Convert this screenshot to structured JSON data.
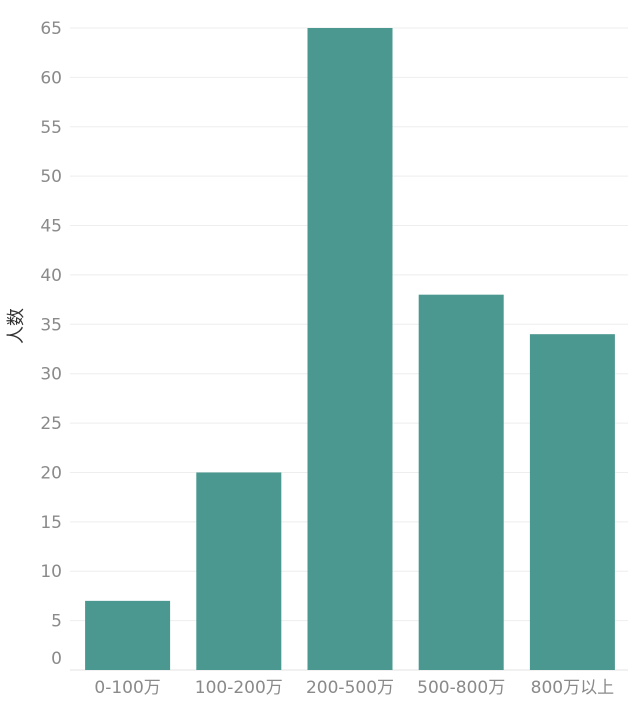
{
  "chart_data": {
    "type": "bar",
    "title": "",
    "xlabel": "",
    "ylabel": "人数",
    "categories": [
      "0-100万",
      "100-200万",
      "200-500万",
      "500-800万",
      "800万以上"
    ],
    "values": [
      7,
      20,
      65,
      38,
      34
    ],
    "ylim": [
      0,
      65
    ],
    "yticks": [
      0,
      5,
      10,
      15,
      20,
      25,
      30,
      35,
      40,
      45,
      50,
      55,
      60,
      65
    ],
    "grid": true,
    "legend": "none",
    "bar_color": "#4a988f"
  }
}
